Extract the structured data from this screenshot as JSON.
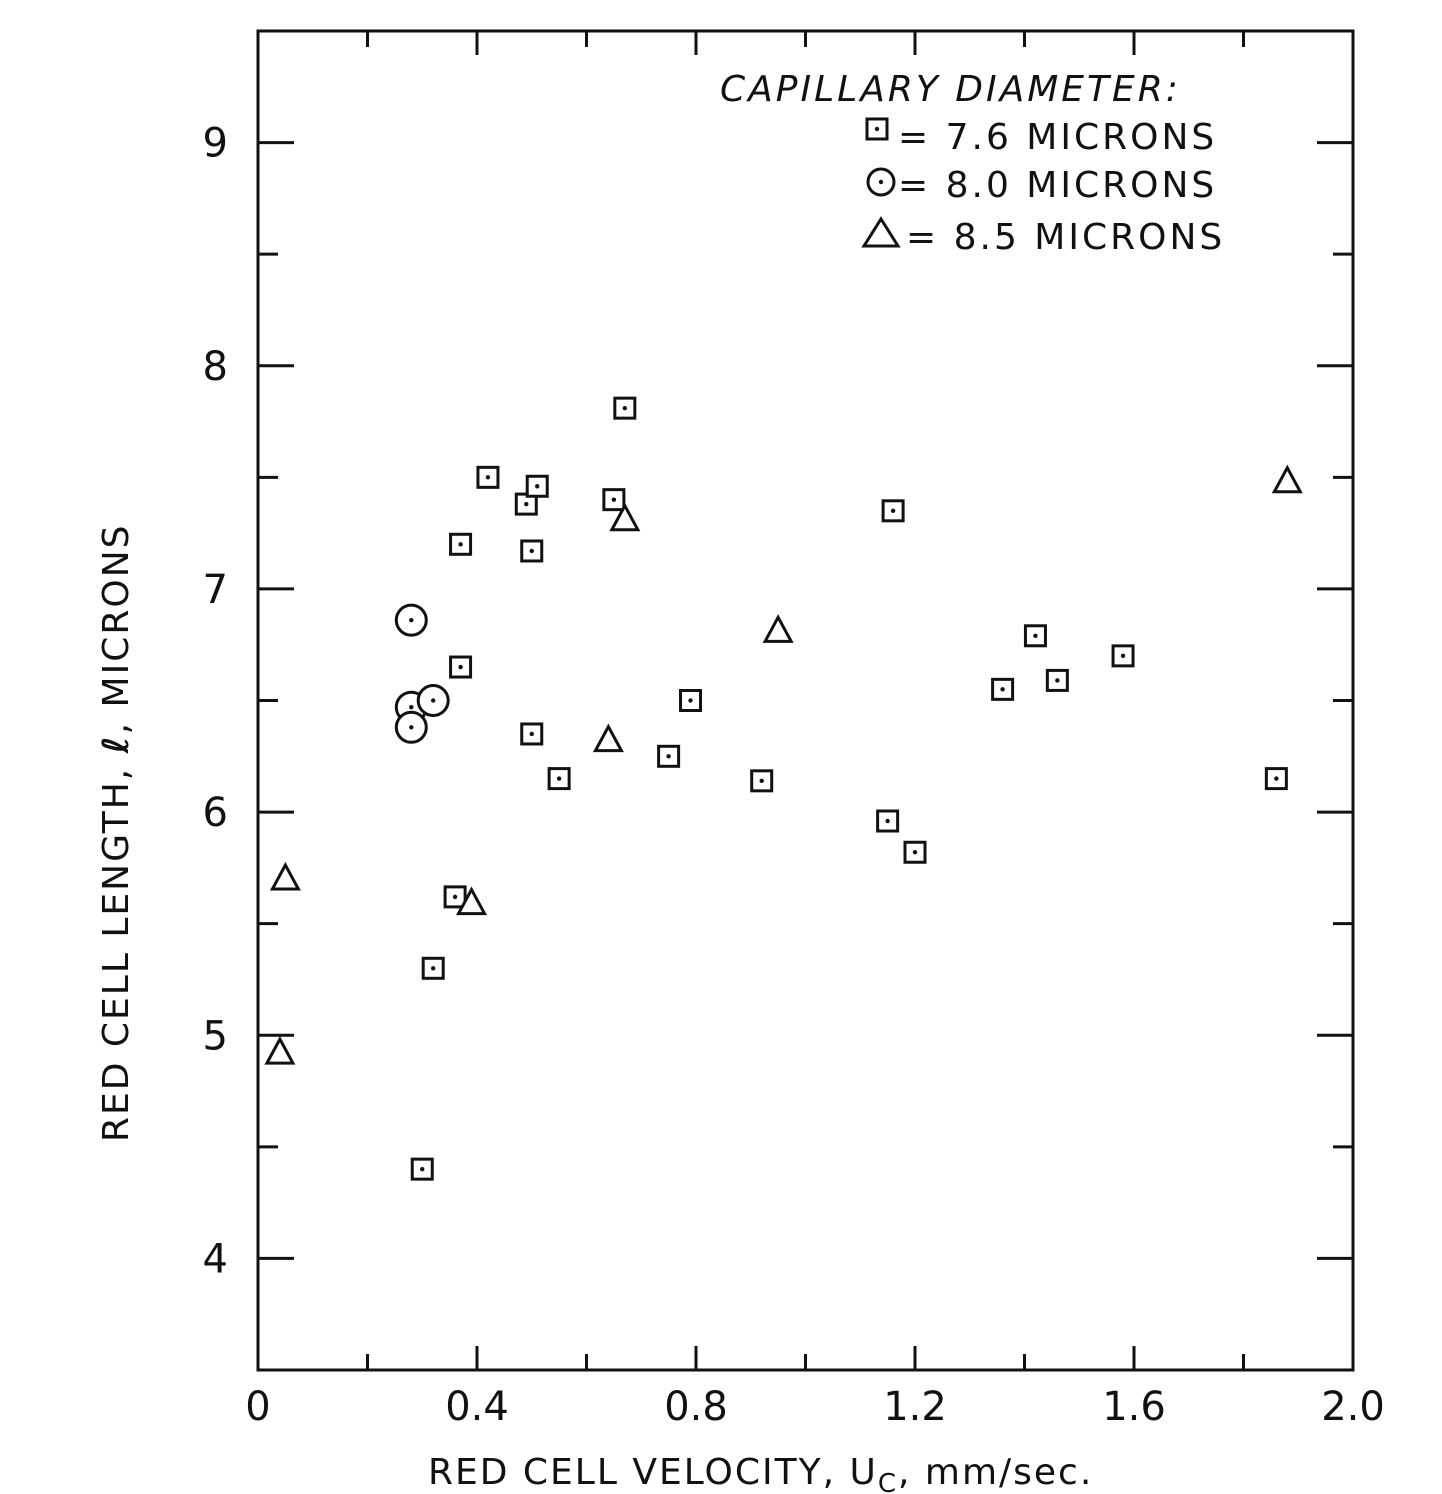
{
  "chart_data": {
    "type": "scatter",
    "title": "",
    "xlabel": "RED CELL VELOCITY, U",
    "xlabel_subscript": "C",
    "xlabel_unit": ", mm/sec.",
    "ylabel_prefix": "RED CELL LENGTH, ",
    "ylabel_symbol": "ℓ",
    "ylabel_suffix": ", MICRONS",
    "xlim": [
      0,
      2.0
    ],
    "ylim": [
      3.5,
      9.5
    ],
    "x_ticks": [
      0,
      0.4,
      0.8,
      1.2,
      1.6,
      2.0
    ],
    "x_tick_labels": [
      "0",
      "0.4",
      "0.8",
      "1.2",
      "1.6",
      "2.0"
    ],
    "y_ticks": [
      4,
      5,
      6,
      7,
      8,
      9
    ],
    "y_tick_labels": [
      "4",
      "5",
      "6",
      "7",
      "8",
      "9"
    ],
    "grid": false,
    "legend": {
      "title": "CAPILLARY DIAMETER:",
      "placement": "top-right"
    },
    "series": [
      {
        "name": "= 7.6 MICRONS",
        "marker": "square",
        "points": [
          [
            0.3,
            4.4
          ],
          [
            0.32,
            5.3
          ],
          [
            0.36,
            5.62
          ],
          [
            0.37,
            6.65
          ],
          [
            0.37,
            7.2
          ],
          [
            0.42,
            7.5
          ],
          [
            0.49,
            7.38
          ],
          [
            0.5,
            7.17
          ],
          [
            0.5,
            6.35
          ],
          [
            0.51,
            7.46
          ],
          [
            0.55,
            6.15
          ],
          [
            0.65,
            7.4
          ],
          [
            0.67,
            7.81
          ],
          [
            0.75,
            6.25
          ],
          [
            0.79,
            6.5
          ],
          [
            0.92,
            6.14
          ],
          [
            1.15,
            5.96
          ],
          [
            1.16,
            7.35
          ],
          [
            1.2,
            5.82
          ],
          [
            1.36,
            6.55
          ],
          [
            1.42,
            6.79
          ],
          [
            1.46,
            6.59
          ],
          [
            1.58,
            6.7
          ],
          [
            1.86,
            6.15
          ]
        ]
      },
      {
        "name": "= 8.0 MICRONS",
        "marker": "circle",
        "points": [
          [
            0.28,
            6.86
          ],
          [
            0.28,
            6.47
          ],
          [
            0.28,
            6.38
          ],
          [
            0.32,
            6.5
          ]
        ]
      },
      {
        "name": "= 8.5 MICRONS",
        "marker": "triangle",
        "points": [
          [
            0.04,
            4.92
          ],
          [
            0.05,
            5.7
          ],
          [
            0.39,
            5.59
          ],
          [
            0.64,
            6.32
          ],
          [
            0.67,
            7.31
          ],
          [
            0.95,
            6.81
          ],
          [
            1.88,
            7.48
          ]
        ]
      }
    ]
  }
}
